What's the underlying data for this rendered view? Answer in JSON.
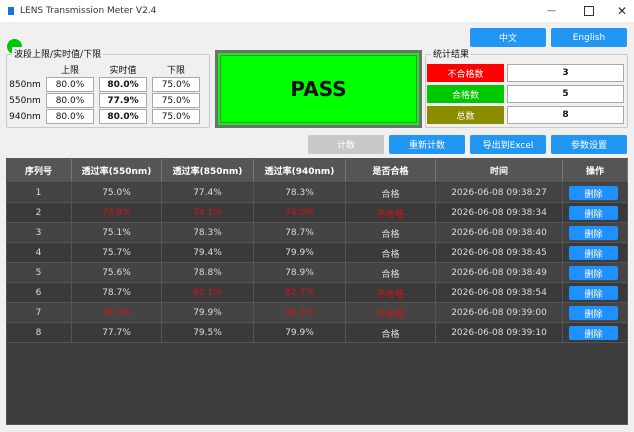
{
  "window": {
    "title": "LENS Transmission Meter V2.4"
  },
  "language_buttons": [
    "中文",
    "English"
  ],
  "limits": {
    "title": "波段上限/实时值/下限",
    "headers": [
      "上限",
      "实时值",
      "下限"
    ],
    "rows": [
      {
        "band": "850nm",
        "values": [
          "80.0%",
          "80.0%",
          "75.0%"
        ]
      },
      {
        "band": "550nm",
        "values": [
          "80.0%",
          "77.9%",
          "75.0%"
        ]
      },
      {
        "band": "940nm",
        "values": [
          "80.0%",
          "80.0%",
          "75.0%"
        ]
      }
    ]
  },
  "result": {
    "text": "PASS",
    "color": "#00ff00"
  },
  "stats": {
    "title": "统计结果",
    "rows": [
      {
        "label": "不合格数",
        "value": "3",
        "color": "#ff0000"
      },
      {
        "label": "合格数",
        "value": "5",
        "color": "#00c800"
      },
      {
        "label": "总数",
        "value": "8",
        "color": "#8c8c00"
      }
    ]
  },
  "actions": [
    "计数",
    "重新计数",
    "导出到Excel",
    "参数设置"
  ],
  "table": {
    "headers": [
      "序列号",
      "透过率(550nm)",
      "透过率(850nm)",
      "透过率(940nm)",
      "是否合格",
      "时间",
      "操作"
    ],
    "alert_color": "#e01010",
    "rows": [
      {
        "cells": [
          "1",
          "75.0%",
          "77.4%",
          "78.3%",
          "合格",
          "2026-06-08 09:38:27",
          "删除"
        ],
        "alert": []
      },
      {
        "cells": [
          "2",
          "73.8%",
          "74.1%",
          "74.0%",
          "不合格",
          "2026-06-08 09:38:34",
          "删除"
        ],
        "alert": [
          1,
          2,
          3,
          4
        ]
      },
      {
        "cells": [
          "3",
          "75.1%",
          "78.3%",
          "78.7%",
          "合格",
          "2026-06-08 09:38:40",
          "删除"
        ],
        "alert": []
      },
      {
        "cells": [
          "4",
          "75.7%",
          "79.4%",
          "79.9%",
          "合格",
          "2026-06-08 09:38:45",
          "删除"
        ],
        "alert": []
      },
      {
        "cells": [
          "5",
          "75.6%",
          "78.8%",
          "78.9%",
          "合格",
          "2026-06-08 09:38:49",
          "删除"
        ],
        "alert": []
      },
      {
        "cells": [
          "6",
          "78.7%",
          "82.1%",
          "82.7%",
          "不合格",
          "2026-06-08 09:38:54",
          "删除"
        ],
        "alert": [
          2,
          3,
          4
        ]
      },
      {
        "cells": [
          "7",
          "74.3%",
          "79.9%",
          "80.2%",
          "不合格",
          "2026-06-08 09:39:00",
          "删除"
        ],
        "alert": [
          1,
          3,
          4
        ]
      },
      {
        "cells": [
          "8",
          "77.7%",
          "79.5%",
          "79.9%",
          "合格",
          "2026-06-08 09:39:10",
          "删除"
        ],
        "alert": []
      }
    ]
  }
}
